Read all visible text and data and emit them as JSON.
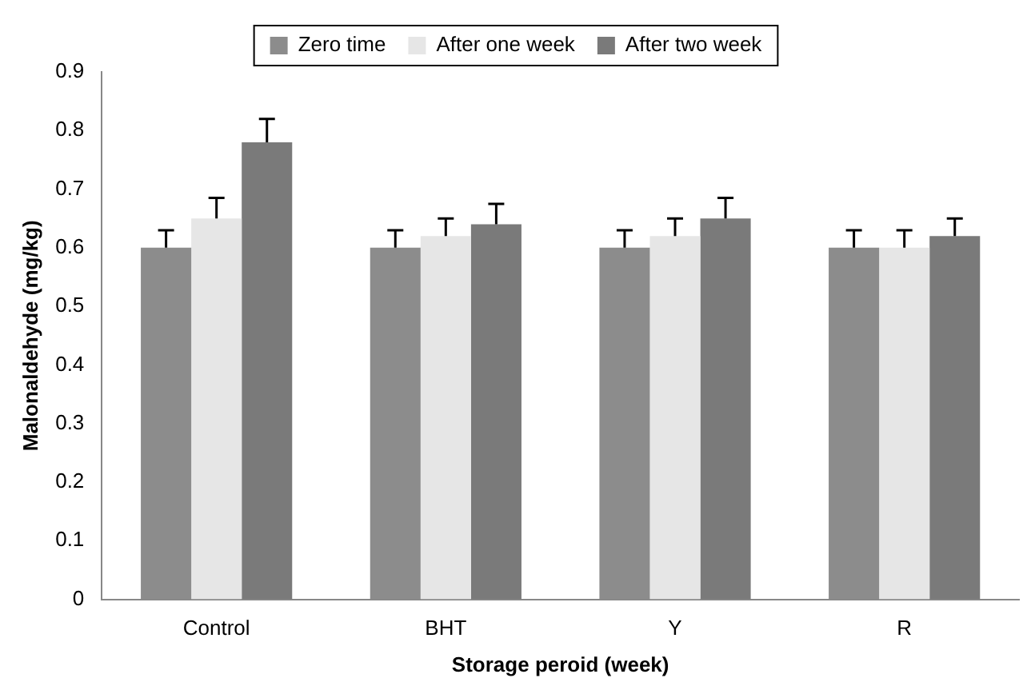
{
  "chart_data": {
    "type": "bar",
    "xlabel": "Storage peroid (week)",
    "ylabel": "Malonaldehyde (mg/kg)",
    "categories": [
      "Control",
      "BHT",
      "Y",
      "R"
    ],
    "series": [
      {
        "name": "Zero time",
        "color": "#8c8c8c",
        "values": [
          0.6,
          0.6,
          0.6,
          0.6
        ],
        "errors": [
          [
            0.6,
            0.63
          ],
          [
            0.6,
            0.63
          ],
          [
            0.6,
            0.63
          ],
          [
            0.6,
            0.63
          ]
        ]
      },
      {
        "name": "After one week",
        "color": "#e6e6e6",
        "values": [
          0.65,
          0.62,
          0.62,
          0.6
        ],
        "errors": [
          [
            0.65,
            0.685
          ],
          [
            0.62,
            0.65
          ],
          [
            0.62,
            0.65
          ],
          [
            0.6,
            0.63
          ]
        ]
      },
      {
        "name": "After two week",
        "color": "#7a7a7a",
        "values": [
          0.78,
          0.64,
          0.65,
          0.62
        ],
        "errors": [
          [
            0.78,
            0.82
          ],
          [
            0.64,
            0.675
          ],
          [
            0.65,
            0.685
          ],
          [
            0.62,
            0.65
          ]
        ]
      }
    ],
    "ylim": [
      0,
      0.9
    ],
    "yticks": [
      0,
      0.1,
      0.2,
      0.3,
      0.4,
      0.5,
      0.6,
      0.7,
      0.8,
      0.9
    ],
    "grid": false,
    "legend": "top"
  }
}
